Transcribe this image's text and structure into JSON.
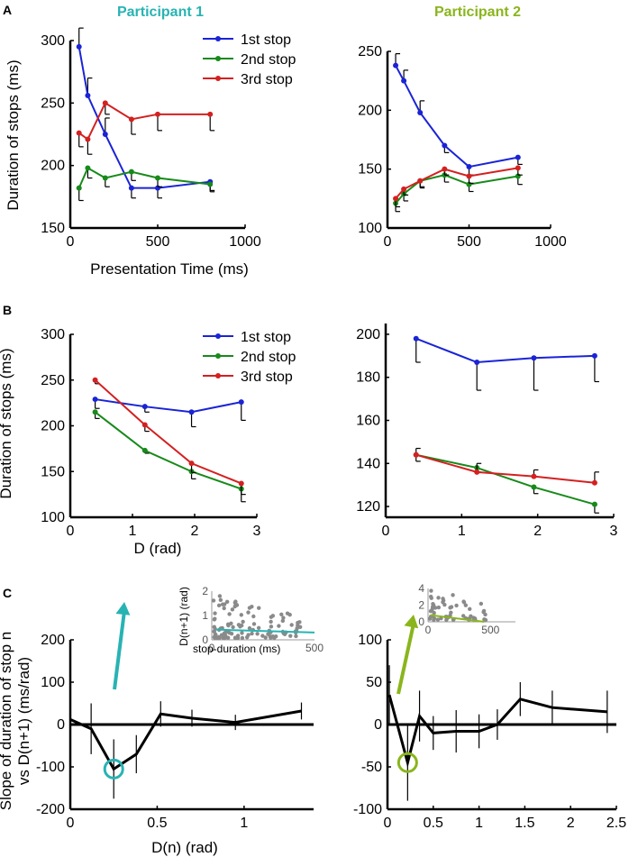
{
  "colors": {
    "series1": "#1a24d6",
    "series2": "#178a1a",
    "series3": "#d42020",
    "participant1": "#28b3b3",
    "participant2": "#8ab51c",
    "scatter": "#8a8a8a",
    "black": "#000000"
  },
  "labels": {
    "panel_a": "A",
    "panel_b": "B",
    "panel_c": "C",
    "participant1": "Participant 1",
    "participant2": "Participant 2"
  },
  "chart_data": [
    {
      "id": "A1",
      "type": "line",
      "xlim": [
        0,
        1000
      ],
      "ylim": [
        150,
        300
      ],
      "xticks": [
        "0",
        "500",
        "1000"
      ],
      "yticks": [
        "150",
        "200",
        "250",
        "300"
      ],
      "xlabel": "Presentation Time (ms)",
      "ylabel": "Duration of stops (ms)",
      "legend": [
        "1st stop",
        "2nd stop",
        "3rd stop"
      ],
      "series": [
        {
          "name": "1st stop",
          "x": [
            50,
            100,
            200,
            350,
            500,
            800
          ],
          "values": [
            295,
            256,
            225,
            182,
            182,
            187
          ],
          "err": [
            15,
            14,
            13,
            8,
            8,
            7
          ]
        },
        {
          "name": "2nd stop",
          "x": [
            50,
            100,
            200,
            350,
            500,
            800
          ],
          "values": [
            182,
            198,
            190,
            195,
            190,
            185
          ],
          "err": [
            10,
            8,
            7,
            7,
            7,
            6
          ]
        },
        {
          "name": "3rd stop",
          "x": [
            50,
            100,
            200,
            350,
            500,
            800
          ],
          "values": [
            226,
            221,
            250,
            237,
            241,
            241
          ],
          "err": [
            11,
            12,
            9,
            12,
            13,
            13
          ]
        }
      ]
    },
    {
      "id": "A2",
      "type": "line",
      "xlim": [
        0,
        1000
      ],
      "ylim": [
        100,
        250
      ],
      "xticks": [
        "0",
        "500",
        "1000"
      ],
      "yticks": [
        "100",
        "150",
        "200",
        "250"
      ],
      "xlabel": "",
      "ylabel": "",
      "series": [
        {
          "name": "1st stop",
          "x": [
            50,
            100,
            200,
            350,
            500,
            800
          ],
          "values": [
            238,
            225,
            198,
            170,
            152,
            160
          ],
          "err": [
            10,
            9,
            10,
            6,
            7,
            6
          ]
        },
        {
          "name": "2nd stop",
          "x": [
            50,
            100,
            200,
            350,
            500,
            800
          ],
          "values": [
            121,
            129,
            140,
            145,
            137,
            144
          ],
          "err": [
            7,
            6,
            6,
            6,
            6,
            7
          ]
        },
        {
          "name": "3rd stop",
          "x": [
            50,
            100,
            200,
            350,
            500,
            800
          ],
          "values": [
            125,
            133,
            140,
            150,
            144,
            151
          ],
          "err": [
            7,
            5,
            5,
            5,
            6,
            6
          ]
        }
      ]
    },
    {
      "id": "B1",
      "type": "line",
      "xlim": [
        0,
        3
      ],
      "ylim": [
        100,
        300
      ],
      "xticks": [
        "0",
        "1",
        "2",
        "3"
      ],
      "yticks": [
        "100",
        "150",
        "200",
        "250",
        "300"
      ],
      "xlabel": "D (rad)",
      "ylabel": "Duration of stops (ms)",
      "legend": [
        "1st stop",
        "2nd stop",
        "3rd stop"
      ],
      "series": [
        {
          "name": "1st stop",
          "x": [
            0.4,
            1.2,
            1.95,
            2.75
          ],
          "values": [
            229,
            221,
            215,
            226
          ],
          "err": [
            10,
            6,
            16,
            20
          ]
        },
        {
          "name": "2nd stop",
          "x": [
            0.4,
            1.2,
            1.95,
            2.75
          ],
          "values": [
            215,
            173,
            150,
            131
          ],
          "err": [
            7,
            3,
            8,
            14
          ]
        },
        {
          "name": "3rd stop",
          "x": [
            0.4,
            1.2,
            1.95,
            2.75
          ],
          "values": [
            250,
            201,
            159,
            137
          ],
          "err": [
            4,
            7,
            10,
            12
          ]
        }
      ]
    },
    {
      "id": "B2",
      "type": "line",
      "xlim": [
        0,
        3
      ],
      "ylim": [
        115,
        205
      ],
      "xticks": [
        "0",
        "1",
        "2",
        "3"
      ],
      "yticks": [
        "120",
        "140",
        "160",
        "180",
        "200"
      ],
      "xlabel": "",
      "ylabel": "",
      "series": [
        {
          "name": "1st stop",
          "x": [
            0.4,
            1.2,
            1.95,
            2.75
          ],
          "values": [
            198,
            187,
            189,
            190
          ],
          "err": [
            11,
            13,
            15,
            12
          ]
        },
        {
          "name": "2nd stop",
          "x": [
            0.4,
            1.2,
            1.95,
            2.75
          ],
          "values": [
            144,
            138,
            129,
            121
          ],
          "err": [
            3,
            2,
            3,
            4
          ]
        },
        {
          "name": "3rd stop",
          "x": [
            0.4,
            1.2,
            1.95,
            2.75
          ],
          "values": [
            144,
            136,
            134,
            131
          ],
          "err": [
            3,
            4,
            3,
            5
          ]
        }
      ]
    },
    {
      "id": "C1",
      "type": "line",
      "xlim": [
        0,
        1.4
      ],
      "ylim": [
        -200,
        200
      ],
      "xticks": [
        "0",
        "0.5",
        "1"
      ],
      "yticks": [
        "-200",
        "-100",
        "0",
        "100",
        "200"
      ],
      "xlabel": "D(n) (rad)",
      "ylabel_line1": "Slope of duration of stop n",
      "ylabel_line2": "vs D(n+1) (ms/rad)",
      "series": [
        {
          "name": "slope",
          "x": [
            0,
            0.12,
            0.25,
            0.38,
            0.52,
            0.7,
            0.95,
            1.33
          ],
          "values": [
            12,
            -10,
            -105,
            -70,
            25,
            15,
            5,
            32
          ],
          "err": [
            55,
            60,
            70,
            45,
            30,
            20,
            18,
            20
          ]
        }
      ],
      "highlight": {
        "x": 0.25,
        "y": -105
      },
      "inset": {
        "xlabel": "stop-duration (ms)",
        "ylabel": "D(n+1) (rad)",
        "xticks": [
          "0",
          "500"
        ],
        "yticks": [
          "0",
          "1",
          "2"
        ],
        "xlim": [
          0,
          500
        ],
        "ylim": [
          0,
          2
        ],
        "fit": {
          "x": [
            20,
            500
          ],
          "y": [
            0.42,
            0.3
          ]
        }
      }
    },
    {
      "id": "C2",
      "type": "line",
      "xlim": [
        0,
        2.5
      ],
      "ylim": [
        -100,
        100
      ],
      "xticks": [
        "0",
        "0.5",
        "1",
        "1.5",
        "2",
        "2.5"
      ],
      "yticks": [
        "-100",
        "-50",
        "0",
        "50",
        "100"
      ],
      "xlabel": "",
      "ylabel": "",
      "series": [
        {
          "name": "slope",
          "x": [
            0.02,
            0.22,
            0.35,
            0.5,
            0.75,
            1.0,
            1.2,
            1.45,
            1.8,
            2.4
          ],
          "values": [
            35,
            -45,
            10,
            -10,
            -8,
            -8,
            0,
            30,
            20,
            15
          ],
          "err": [
            35,
            45,
            30,
            20,
            25,
            20,
            18,
            20,
            20,
            25
          ]
        }
      ],
      "highlight": {
        "x": 0.22,
        "y": -45
      },
      "inset": {
        "xlabel": "",
        "ylabel": "",
        "xticks": [
          "0",
          "500"
        ],
        "yticks": [
          "0",
          "2",
          "4"
        ],
        "xlim": [
          0,
          700
        ],
        "ylim": [
          0,
          4
        ],
        "fit": {
          "x": [
            20,
            450
          ],
          "y": [
            0.8,
            0.0
          ]
        }
      }
    }
  ]
}
